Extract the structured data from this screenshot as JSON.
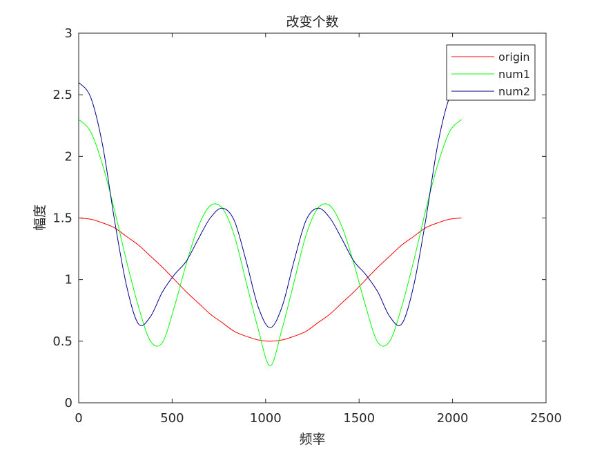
{
  "chart_data": {
    "type": "line",
    "title": "改变个数",
    "xlabel": "频率",
    "ylabel": "幅度",
    "xlim": [
      0,
      2500
    ],
    "ylim": [
      0,
      3
    ],
    "xticks": [
      0,
      500,
      1000,
      1500,
      2000,
      2500
    ],
    "xtick_labels": [
      "0",
      "500",
      "1000",
      "1500",
      "2000",
      "2500"
    ],
    "yticks": [
      0,
      0.5,
      1,
      1.5,
      2,
      2.5,
      3
    ],
    "ytick_labels": [
      "0",
      "0.5",
      "1",
      "1.5",
      "2",
      "2.5",
      "3"
    ],
    "grid": false,
    "legend_position": "top-right",
    "x": [
      0,
      64,
      128,
      192,
      256,
      320,
      384,
      448,
      512,
      576,
      640,
      704,
      768,
      832,
      896,
      960,
      1024,
      1088,
      1152,
      1216,
      1280,
      1344,
      1408,
      1472,
      1536,
      1600,
      1664,
      1728,
      1792,
      1856,
      1920,
      1984,
      2048
    ],
    "series": [
      {
        "name": "origin",
        "color": "#ff0000",
        "values": [
          1.5,
          1.49,
          1.46,
          1.42,
          1.35,
          1.28,
          1.19,
          1.1,
          1.0,
          0.9,
          0.81,
          0.72,
          0.65,
          0.58,
          0.54,
          0.51,
          0.5,
          0.51,
          0.54,
          0.58,
          0.65,
          0.72,
          0.81,
          0.9,
          1.0,
          1.1,
          1.19,
          1.28,
          1.35,
          1.42,
          1.46,
          1.49,
          1.5
        ]
      },
      {
        "name": "num1",
        "color": "#00ff00",
        "values": [
          2.3,
          2.2,
          1.93,
          1.56,
          1.15,
          0.78,
          0.5,
          0.49,
          0.78,
          1.13,
          1.43,
          1.6,
          1.58,
          1.36,
          0.98,
          0.6,
          0.3,
          0.6,
          0.98,
          1.36,
          1.58,
          1.6,
          1.43,
          1.13,
          0.78,
          0.49,
          0.5,
          0.78,
          1.15,
          1.56,
          1.93,
          2.2,
          2.3
        ]
      },
      {
        "name": "num2",
        "color": "#00008b",
        "values": [
          2.6,
          2.48,
          2.09,
          1.48,
          0.95,
          0.64,
          0.7,
          0.9,
          1.04,
          1.15,
          1.33,
          1.5,
          1.58,
          1.48,
          1.15,
          0.78,
          0.61,
          0.78,
          1.15,
          1.48,
          1.58,
          1.5,
          1.33,
          1.15,
          1.04,
          0.9,
          0.7,
          0.64,
          0.95,
          1.48,
          2.09,
          2.48,
          2.6
        ]
      }
    ]
  }
}
